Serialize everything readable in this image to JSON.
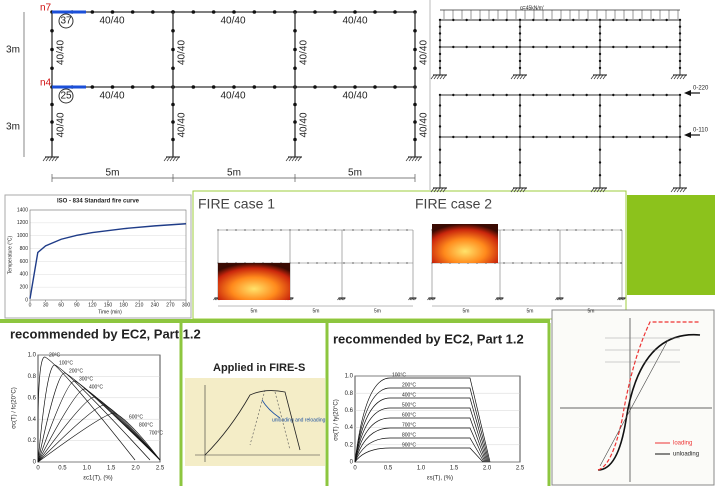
{
  "main_frame": {
    "nodes": [
      "n7",
      "n4"
    ],
    "circles": [
      "37",
      "25"
    ],
    "beam_labels": [
      "40/40",
      "40/40",
      "40/40",
      "40/40",
      "40/40",
      "40/40"
    ],
    "column_labels": [
      "40/40",
      "40/40",
      "40/40",
      "40/40",
      "40/40",
      "40/40",
      "40/40",
      "40/40"
    ],
    "heights": [
      "3m",
      "3m"
    ],
    "spans": [
      "5m",
      "5m",
      "5m"
    ]
  },
  "load_frame": {
    "load": "q=45kN/m'"
  },
  "lateral_frame": {
    "loads": [
      "0-220",
      "0-110"
    ]
  },
  "fire_curve": {
    "title": "ISO - 834 Standard fire curve",
    "y_label": "Temperature (°C)",
    "x_label": "Time (min)",
    "x": [
      0,
      15,
      30,
      60,
      90,
      120,
      180,
      240,
      300
    ],
    "values": [
      20,
      739,
      842,
      945,
      1006,
      1049,
      1110,
      1153,
      1186
    ],
    "xlim": [
      0,
      300
    ],
    "ylim": [
      0,
      1400
    ],
    "xticks": [
      0,
      30,
      60,
      90,
      120,
      150,
      180,
      210,
      240,
      270,
      300
    ],
    "yticks": [
      0,
      200,
      400,
      600,
      800,
      1000,
      1200,
      1400
    ],
    "color": "#1f3c88"
  },
  "fire_cases": [
    {
      "title": "FIRE case 1",
      "spans": [
        "5m",
        "5m",
        "5m"
      ]
    },
    {
      "title": "FIRE case 2",
      "spans": [
        "5m",
        "5m",
        "5m"
      ]
    }
  ],
  "ec2_left": {
    "title": "recommended by EC2, Part 1.2",
    "y_label": "σc(T) / fc(20°C)",
    "x_label": "εc1(T), (%)",
    "yticks": [
      "0",
      "0.2",
      "0.4",
      "0.6",
      "0.8",
      "1.0"
    ],
    "xticks": [
      "0",
      "0.5",
      "1.0",
      "1.5",
      "2.0",
      "2.5"
    ],
    "curves": [
      "20°C",
      "100°C",
      "200°C",
      "300°C",
      "400°C",
      "600°C",
      "800°C",
      "700°C"
    ]
  },
  "fire_s": {
    "title": "Applied in FIRE-S",
    "note": "unloading and reloading"
  },
  "ec2_right": {
    "title": "recommended by EC2, Part 1.2",
    "y_label": "σs(T) / fy(20°C)",
    "x_label": "εs(T), (%)",
    "yticks": [
      "0",
      "0.2",
      "0.4",
      "0.6",
      "0.8",
      "1.0"
    ],
    "xticks": [
      "0",
      "0.5",
      "1.0",
      "1.5",
      "2.0",
      "2.5"
    ],
    "curves": [
      "100°C",
      "200°C",
      "400°C",
      "500°C",
      "600°C",
      "700°C",
      "800°C",
      "900°C"
    ]
  },
  "hysteresis": {
    "legend": [
      "loading",
      "unloading"
    ]
  }
}
